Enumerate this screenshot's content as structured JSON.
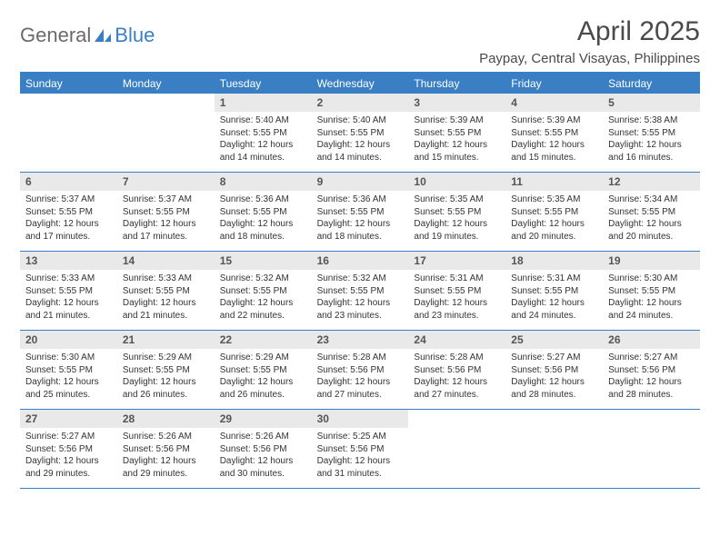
{
  "brand": {
    "word1": "General",
    "word2": "Blue"
  },
  "title": "April 2025",
  "location": "Paypay, Central Visayas, Philippines",
  "colors": {
    "accent": "#3a7fc4",
    "dayhead_bg": "#3a7fc4",
    "dayhead_text": "#ffffff",
    "daynum_bg": "#e9e9e9",
    "text": "#333333",
    "title_text": "#4a4a4a",
    "logo_gray": "#6a6a6a"
  },
  "dayNames": [
    "Sunday",
    "Monday",
    "Tuesday",
    "Wednesday",
    "Thursday",
    "Friday",
    "Saturday"
  ],
  "weeks": [
    [
      {
        "n": "",
        "sr": "",
        "ss": "",
        "dl": ""
      },
      {
        "n": "",
        "sr": "",
        "ss": "",
        "dl": ""
      },
      {
        "n": "1",
        "sr": "Sunrise: 5:40 AM",
        "ss": "Sunset: 5:55 PM",
        "dl": "Daylight: 12 hours and 14 minutes."
      },
      {
        "n": "2",
        "sr": "Sunrise: 5:40 AM",
        "ss": "Sunset: 5:55 PM",
        "dl": "Daylight: 12 hours and 14 minutes."
      },
      {
        "n": "3",
        "sr": "Sunrise: 5:39 AM",
        "ss": "Sunset: 5:55 PM",
        "dl": "Daylight: 12 hours and 15 minutes."
      },
      {
        "n": "4",
        "sr": "Sunrise: 5:39 AM",
        "ss": "Sunset: 5:55 PM",
        "dl": "Daylight: 12 hours and 15 minutes."
      },
      {
        "n": "5",
        "sr": "Sunrise: 5:38 AM",
        "ss": "Sunset: 5:55 PM",
        "dl": "Daylight: 12 hours and 16 minutes."
      }
    ],
    [
      {
        "n": "6",
        "sr": "Sunrise: 5:37 AM",
        "ss": "Sunset: 5:55 PM",
        "dl": "Daylight: 12 hours and 17 minutes."
      },
      {
        "n": "7",
        "sr": "Sunrise: 5:37 AM",
        "ss": "Sunset: 5:55 PM",
        "dl": "Daylight: 12 hours and 17 minutes."
      },
      {
        "n": "8",
        "sr": "Sunrise: 5:36 AM",
        "ss": "Sunset: 5:55 PM",
        "dl": "Daylight: 12 hours and 18 minutes."
      },
      {
        "n": "9",
        "sr": "Sunrise: 5:36 AM",
        "ss": "Sunset: 5:55 PM",
        "dl": "Daylight: 12 hours and 18 minutes."
      },
      {
        "n": "10",
        "sr": "Sunrise: 5:35 AM",
        "ss": "Sunset: 5:55 PM",
        "dl": "Daylight: 12 hours and 19 minutes."
      },
      {
        "n": "11",
        "sr": "Sunrise: 5:35 AM",
        "ss": "Sunset: 5:55 PM",
        "dl": "Daylight: 12 hours and 20 minutes."
      },
      {
        "n": "12",
        "sr": "Sunrise: 5:34 AM",
        "ss": "Sunset: 5:55 PM",
        "dl": "Daylight: 12 hours and 20 minutes."
      }
    ],
    [
      {
        "n": "13",
        "sr": "Sunrise: 5:33 AM",
        "ss": "Sunset: 5:55 PM",
        "dl": "Daylight: 12 hours and 21 minutes."
      },
      {
        "n": "14",
        "sr": "Sunrise: 5:33 AM",
        "ss": "Sunset: 5:55 PM",
        "dl": "Daylight: 12 hours and 21 minutes."
      },
      {
        "n": "15",
        "sr": "Sunrise: 5:32 AM",
        "ss": "Sunset: 5:55 PM",
        "dl": "Daylight: 12 hours and 22 minutes."
      },
      {
        "n": "16",
        "sr": "Sunrise: 5:32 AM",
        "ss": "Sunset: 5:55 PM",
        "dl": "Daylight: 12 hours and 23 minutes."
      },
      {
        "n": "17",
        "sr": "Sunrise: 5:31 AM",
        "ss": "Sunset: 5:55 PM",
        "dl": "Daylight: 12 hours and 23 minutes."
      },
      {
        "n": "18",
        "sr": "Sunrise: 5:31 AM",
        "ss": "Sunset: 5:55 PM",
        "dl": "Daylight: 12 hours and 24 minutes."
      },
      {
        "n": "19",
        "sr": "Sunrise: 5:30 AM",
        "ss": "Sunset: 5:55 PM",
        "dl": "Daylight: 12 hours and 24 minutes."
      }
    ],
    [
      {
        "n": "20",
        "sr": "Sunrise: 5:30 AM",
        "ss": "Sunset: 5:55 PM",
        "dl": "Daylight: 12 hours and 25 minutes."
      },
      {
        "n": "21",
        "sr": "Sunrise: 5:29 AM",
        "ss": "Sunset: 5:55 PM",
        "dl": "Daylight: 12 hours and 26 minutes."
      },
      {
        "n": "22",
        "sr": "Sunrise: 5:29 AM",
        "ss": "Sunset: 5:55 PM",
        "dl": "Daylight: 12 hours and 26 minutes."
      },
      {
        "n": "23",
        "sr": "Sunrise: 5:28 AM",
        "ss": "Sunset: 5:56 PM",
        "dl": "Daylight: 12 hours and 27 minutes."
      },
      {
        "n": "24",
        "sr": "Sunrise: 5:28 AM",
        "ss": "Sunset: 5:56 PM",
        "dl": "Daylight: 12 hours and 27 minutes."
      },
      {
        "n": "25",
        "sr": "Sunrise: 5:27 AM",
        "ss": "Sunset: 5:56 PM",
        "dl": "Daylight: 12 hours and 28 minutes."
      },
      {
        "n": "26",
        "sr": "Sunrise: 5:27 AM",
        "ss": "Sunset: 5:56 PM",
        "dl": "Daylight: 12 hours and 28 minutes."
      }
    ],
    [
      {
        "n": "27",
        "sr": "Sunrise: 5:27 AM",
        "ss": "Sunset: 5:56 PM",
        "dl": "Daylight: 12 hours and 29 minutes."
      },
      {
        "n": "28",
        "sr": "Sunrise: 5:26 AM",
        "ss": "Sunset: 5:56 PM",
        "dl": "Daylight: 12 hours and 29 minutes."
      },
      {
        "n": "29",
        "sr": "Sunrise: 5:26 AM",
        "ss": "Sunset: 5:56 PM",
        "dl": "Daylight: 12 hours and 30 minutes."
      },
      {
        "n": "30",
        "sr": "Sunrise: 5:25 AM",
        "ss": "Sunset: 5:56 PM",
        "dl": "Daylight: 12 hours and 31 minutes."
      },
      {
        "n": "",
        "sr": "",
        "ss": "",
        "dl": ""
      },
      {
        "n": "",
        "sr": "",
        "ss": "",
        "dl": ""
      },
      {
        "n": "",
        "sr": "",
        "ss": "",
        "dl": ""
      }
    ]
  ]
}
